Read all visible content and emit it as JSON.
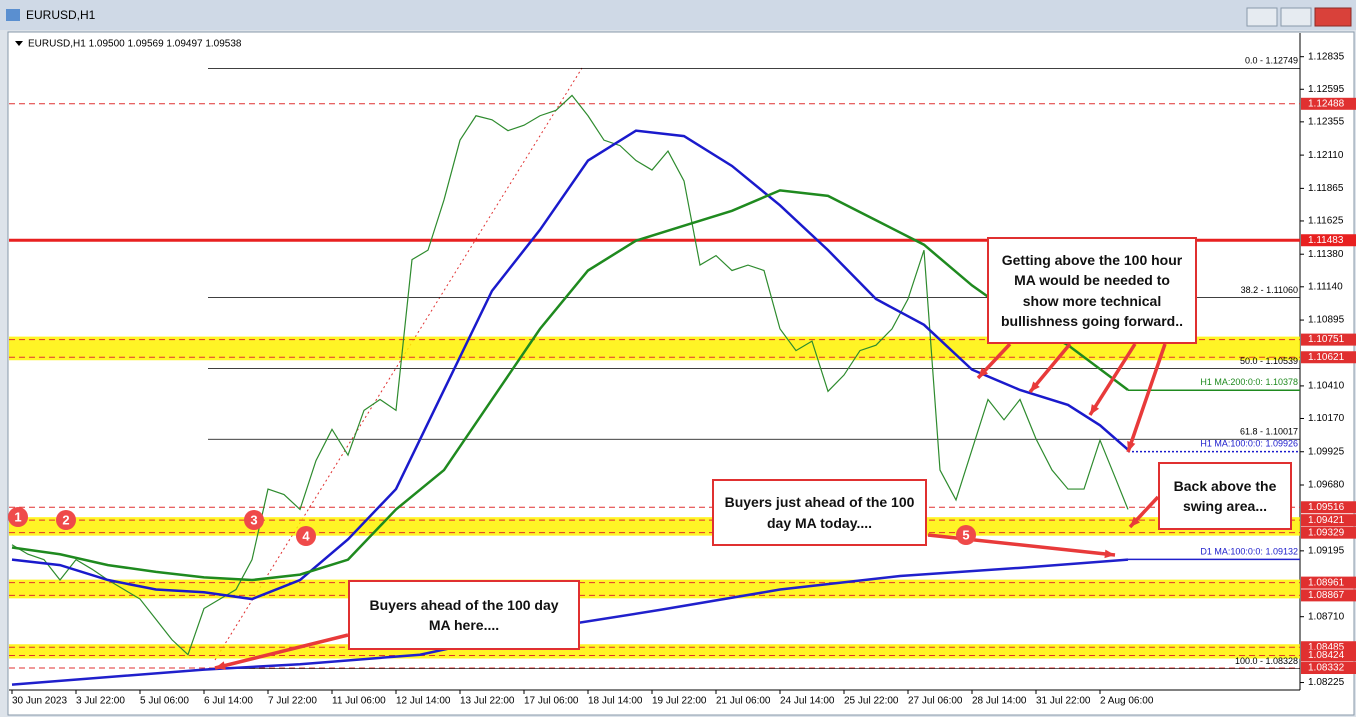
{
  "window_title": "EURUSD,H1",
  "chart_data": {
    "type": "line",
    "subtitle": "EURUSD,H1  1.09500 1.09569 1.09497 1.09538",
    "xlim": [
      0,
      644
    ],
    "xticks": [
      {
        "value": 0,
        "label": "30 Jun 2023"
      },
      {
        "value": 32,
        "label": "3 Jul 22:00"
      },
      {
        "value": 64,
        "label": "5 Jul 06:00"
      },
      {
        "value": 96,
        "label": "6 Jul 14:00"
      },
      {
        "value": 128,
        "label": "7 Jul 22:00"
      },
      {
        "value": 160,
        "label": "11 Jul 06:00"
      },
      {
        "value": 192,
        "label": "12 Jul 14:00"
      },
      {
        "value": 224,
        "label": "13 Jul 22:00"
      },
      {
        "value": 256,
        "label": "17 Jul 06:00"
      },
      {
        "value": 288,
        "label": "18 Jul 14:00"
      },
      {
        "value": 320,
        "label": "19 Jul 22:00"
      },
      {
        "value": 352,
        "label": "21 Jul 06:00"
      },
      {
        "value": 384,
        "label": "24 Jul 14:00"
      },
      {
        "value": 416,
        "label": "25 Jul 22:00"
      },
      {
        "value": 448,
        "label": "27 Jul 06:00"
      },
      {
        "value": 480,
        "label": "28 Jul 14:00"
      },
      {
        "value": 512,
        "label": "31 Jul 22:00"
      },
      {
        "value": 544,
        "label": "2 Aug 06:00"
      }
    ],
    "ylim": [
      1.0817,
      1.1298
    ],
    "yticks": [
      1.12835,
      1.12595,
      1.12355,
      {
        "value": 1.1211,
        "label": "1.12110"
      },
      1.11865,
      1.11625,
      {
        "value": 1.1138,
        "label": "1.11380"
      },
      {
        "value": 1.1114,
        "label": "1.11140"
      },
      1.10895,
      {
        "value": 1.1041,
        "label": "1.10410"
      },
      {
        "value": 1.1017,
        "label": "1.10170"
      },
      1.09925,
      {
        "value": 1.0968,
        "label": "1.09680"
      },
      1.09195,
      {
        "value": 1.0871,
        "label": "1.08710"
      },
      1.08225
    ],
    "series": [
      {
        "color": "#2e8b2e",
        "x": [
          0,
          8,
          16,
          24,
          32,
          40,
          48,
          56,
          64,
          72,
          80,
          88,
          96,
          104,
          112,
          120,
          128,
          136,
          144,
          152,
          160,
          168,
          176,
          184,
          192,
          200,
          208,
          216,
          224,
          232,
          240,
          248,
          256,
          264,
          272,
          280,
          288,
          296,
          304,
          312,
          320,
          328,
          336,
          344,
          352,
          360,
          368,
          376,
          384,
          392,
          400,
          408,
          416,
          424,
          432,
          440,
          448,
          456,
          464,
          472,
          480,
          488,
          496,
          504,
          512,
          520,
          528,
          536,
          544,
          552,
          558
        ],
        "values": [
          1.0924,
          1.0917,
          1.0913,
          1.0898,
          1.0913,
          1.0906,
          1.0898,
          1.0891,
          1.0884,
          1.0869,
          1.0854,
          1.0843,
          1.0877,
          1.0884,
          1.0891,
          1.0913,
          1.0965,
          1.0961,
          1.095,
          1.0986,
          1.1009,
          1.099,
          1.1023,
          1.1031,
          1.1023,
          1.1134,
          1.1141,
          1.1178,
          1.1222,
          1.124,
          1.1237,
          1.1229,
          1.1233,
          1.124,
          1.1244,
          1.1255,
          1.124,
          1.1222,
          1.1218,
          1.1207,
          1.12,
          1.1214,
          1.1192,
          1.113,
          1.1137,
          1.1126,
          1.113,
          1.1126,
          1.1083,
          1.1067,
          1.1074,
          1.1037,
          1.1049,
          1.1067,
          1.1071,
          1.1083,
          1.1105,
          1.1141,
          1.0979,
          1.0957,
          1.0994,
          1.1031,
          1.1016,
          1.1031,
          1.1002,
          1.0979,
          1.0965,
          1.0965,
          1.1001,
          1.0972,
          1.095
        ]
      },
      {
        "name": "H1 MA:100:0:0:",
        "last_value": 1.09926,
        "color": "#1a1acc",
        "x": [
          0,
          24,
          48,
          72,
          96,
          120,
          144,
          168,
          192,
          216,
          240,
          264,
          288,
          312,
          336,
          360,
          384,
          408,
          432,
          456,
          480,
          504,
          528,
          544,
          558
        ],
        "values": [
          1.0913,
          1.0909,
          1.0898,
          1.0891,
          1.0889,
          1.0884,
          1.0898,
          1.0928,
          1.0965,
          1.1038,
          1.1111,
          1.1156,
          1.1207,
          1.1229,
          1.1225,
          1.1203,
          1.1174,
          1.1141,
          1.1105,
          1.1086,
          1.1053,
          1.1038,
          1.1027,
          1.1012,
          1.0994
        ]
      },
      {
        "name": "H1 MA:200:0:0:",
        "last_value": 1.10378,
        "color": "#1f8a1f",
        "x": [
          0,
          24,
          48,
          72,
          96,
          120,
          144,
          168,
          192,
          216,
          240,
          264,
          288,
          312,
          336,
          360,
          384,
          408,
          432,
          456,
          480,
          504,
          528,
          558
        ],
        "values": [
          1.0922,
          1.0917,
          1.0909,
          1.0904,
          1.09,
          1.0898,
          1.0902,
          1.0913,
          1.095,
          1.0979,
          1.1031,
          1.1083,
          1.1126,
          1.1148,
          1.1159,
          1.117,
          1.1185,
          1.1181,
          1.1163,
          1.1145,
          1.1115,
          1.109,
          1.1071,
          1.1038
        ]
      },
      {
        "name": "D1 MA:100:0:0:",
        "last_value": 1.09132,
        "color": "#2020cc",
        "x": [
          0,
          96,
          144,
          204,
          264,
          324,
          384,
          444,
          504,
          558
        ],
        "values": [
          1.0821,
          1.0832,
          1.0836,
          1.0843,
          1.0862,
          1.0876,
          1.0891,
          1.0901,
          1.0907,
          1.0913
        ]
      }
    ],
    "fib_levels": [
      {
        "value": 1.12749,
        "label": "0.0 - 1.12749"
      },
      {
        "value": 1.1106,
        "label": "38.2 - 1.11060"
      },
      {
        "value": 1.10539,
        "label": "50.0 - 1.10539"
      },
      {
        "value": 1.10017,
        "label": "61.8 - 1.10017"
      },
      {
        "value": 1.08328,
        "label": "100.0 - 1.08328"
      }
    ],
    "levels": [
      {
        "value": 1.12488,
        "style": "dashed",
        "color": "#e03030"
      },
      {
        "value": 1.11483,
        "style": "solid",
        "color": "#e82020"
      },
      {
        "value": 1.09516,
        "style": "dashed",
        "color": "#e03030"
      },
      {
        "value": 1.08332,
        "style": "dashed",
        "color": "#e03030"
      }
    ],
    "zones": [
      {
        "high": 1.10751,
        "low": 1.10621
      },
      {
        "high": 1.09421,
        "low": 1.09329
      },
      {
        "high": 1.08961,
        "low": 1.08867
      },
      {
        "high": 1.08485,
        "low": 1.08424
      }
    ],
    "annotations": [
      "Getting above the 100 hour MA would be needed to show more technical bullishness going forward..",
      "Buyers just ahead of the 100 day MA today....",
      "Back above the swing area...",
      "Buyers ahead of the 100 day MA here...."
    ],
    "swing_markers": [
      "1",
      "2",
      "3",
      "4",
      "5"
    ]
  }
}
